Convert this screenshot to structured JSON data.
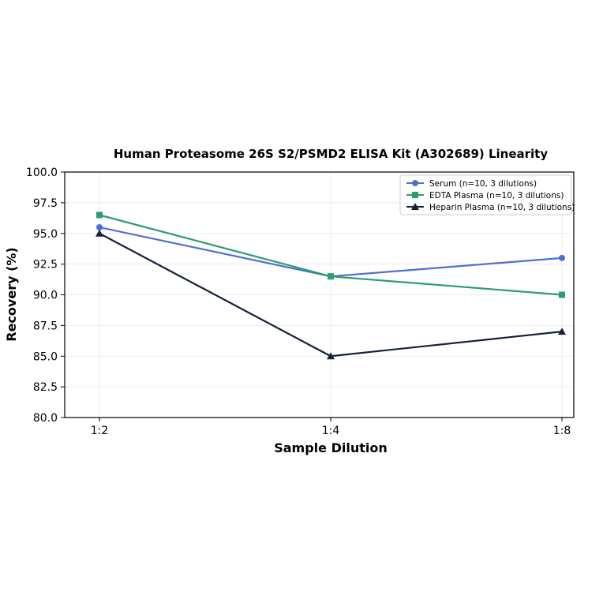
{
  "chart_data": {
    "type": "line",
    "title": "Human Proteasome 26S S2/PSMD2 ELISA Kit (A302689) Linearity",
    "xlabel": "Sample Dilution",
    "ylabel": "Recovery (%)",
    "categories": [
      "1:2",
      "1:4",
      "1:8"
    ],
    "ylim": [
      80.0,
      100.0
    ],
    "yticks": [
      "80.0",
      "82.5",
      "85.0",
      "87.5",
      "90.0",
      "92.5",
      "95.0",
      "97.5",
      "100.0"
    ],
    "grid": true,
    "legend_position": "top-right",
    "series": [
      {
        "name": "Serum (n=10, 3 dilutions)",
        "values": [
          95.5,
          91.5,
          93.0
        ],
        "color": "#4e6fd4",
        "marker": "circle"
      },
      {
        "name": "EDTA Plasma (n=10, 3 dilutions)",
        "values": [
          96.5,
          91.5,
          90.0
        ],
        "color": "#2a9d72",
        "marker": "square"
      },
      {
        "name": "Heparin Plasma (n=10, 3 dilutions)",
        "values": [
          95.0,
          85.0,
          87.0
        ],
        "color": "#14213d",
        "marker": "triangle"
      }
    ]
  }
}
